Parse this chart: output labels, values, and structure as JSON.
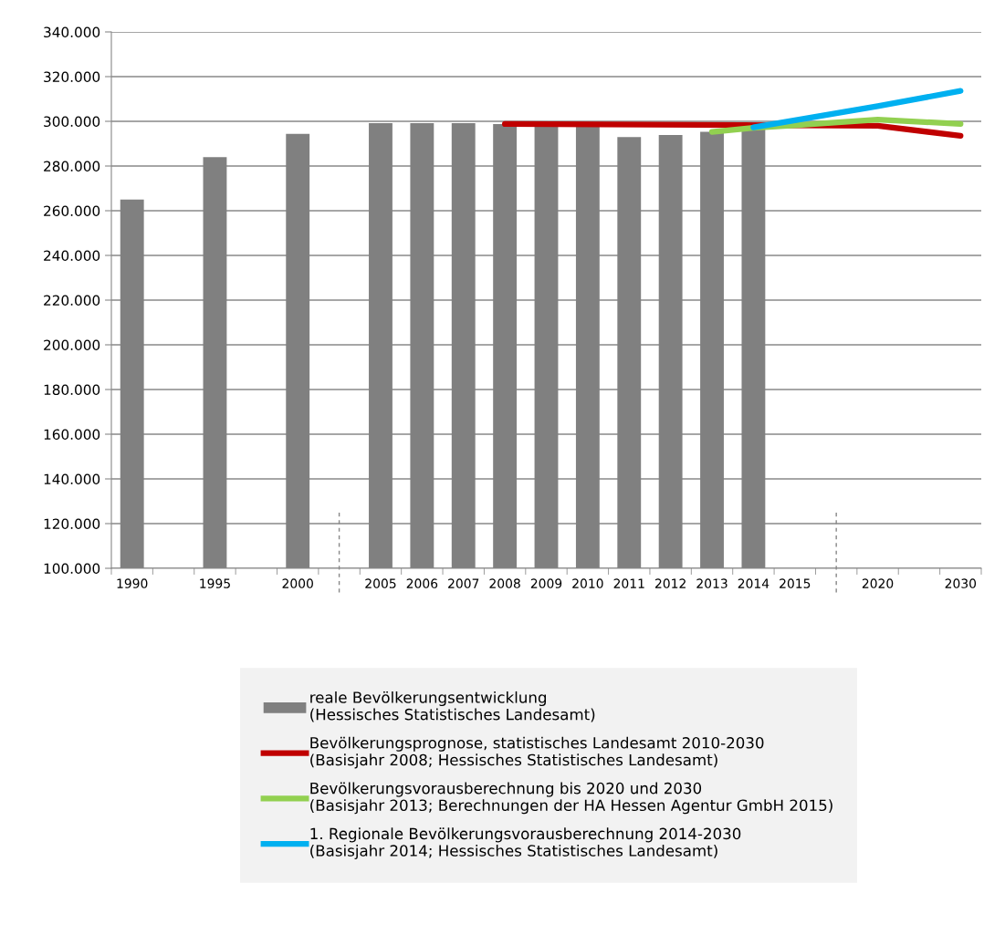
{
  "chart_data": {
    "type": "bar",
    "categories": [
      "1990",
      null,
      "1995",
      null,
      "2000",
      null,
      "2005",
      "2006",
      "2007",
      "2008",
      "2009",
      "2010",
      "2011",
      "2012",
      "2013",
      "2014",
      "2015",
      null,
      "2020",
      null,
      "2030"
    ],
    "series": [
      {
        "name": "reale Bevölkerungsentwicklung\n(Hessisches Statistisches Landesamt)",
        "color": "#808080",
        "values": [
          265000,
          null,
          284000,
          null,
          294400,
          null,
          299200,
          299200,
          299200,
          298800,
          298000,
          298000,
          293000,
          293900,
          295300,
          297000,
          null,
          null,
          null,
          null,
          null
        ]
      },
      {
        "type": "line",
        "name": "Bevölkerungsprognose, statistisches Landesamt 2010-2030\n(Basisjahr 2008; Hessisches Statistisches Landesamt)",
        "color": "#c00000",
        "values": [
          null,
          null,
          null,
          null,
          null,
          null,
          null,
          null,
          null,
          298800,
          null,
          null,
          null,
          null,
          null,
          null,
          null,
          null,
          298000,
          null,
          293500
        ]
      },
      {
        "type": "line",
        "name": "Bevölkerungsvorausberechnung bis 2020 und 2030\n(Basisjahr 2013; Berechnungen der HA Hessen Agentur GmbH 2015)",
        "color": "#92d050",
        "values": [
          null,
          null,
          null,
          null,
          null,
          null,
          null,
          null,
          null,
          null,
          null,
          null,
          null,
          null,
          295300,
          297100,
          298200,
          null,
          300800,
          null,
          298800
        ]
      },
      {
        "type": "line",
        "name": "1. Regionale Bevölkerungsvorausberechnung 2014-2030\n(Basisjahr 2014; Hessisches Statistisches Landesamt)",
        "color": "#00b0f0",
        "values": [
          null,
          null,
          null,
          null,
          null,
          null,
          null,
          null,
          null,
          null,
          null,
          null,
          null,
          null,
          null,
          297300,
          null,
          null,
          306800,
          null,
          313600
        ]
      }
    ],
    "ylim": [
      100000,
      340000
    ],
    "yticks": [
      {
        "value": 100000,
        "label": "100.000"
      },
      {
        "value": 120000,
        "label": "120.000"
      },
      {
        "value": 140000,
        "label": "140.000"
      },
      {
        "value": 160000,
        "label": "160.000"
      },
      {
        "value": 180000,
        "label": "180.000"
      },
      {
        "value": 200000,
        "label": "200.000"
      },
      {
        "value": 220000,
        "label": "220.000"
      },
      {
        "value": 240000,
        "label": "240.000"
      },
      {
        "value": 260000,
        "label": "260.000"
      },
      {
        "value": 280000,
        "label": "280.000"
      },
      {
        "value": 300000,
        "label": "300.000"
      },
      {
        "value": 320000,
        "label": "320.000"
      },
      {
        "value": 340000,
        "label": "340.000"
      }
    ],
    "grid": "y",
    "legend": "bottom"
  }
}
